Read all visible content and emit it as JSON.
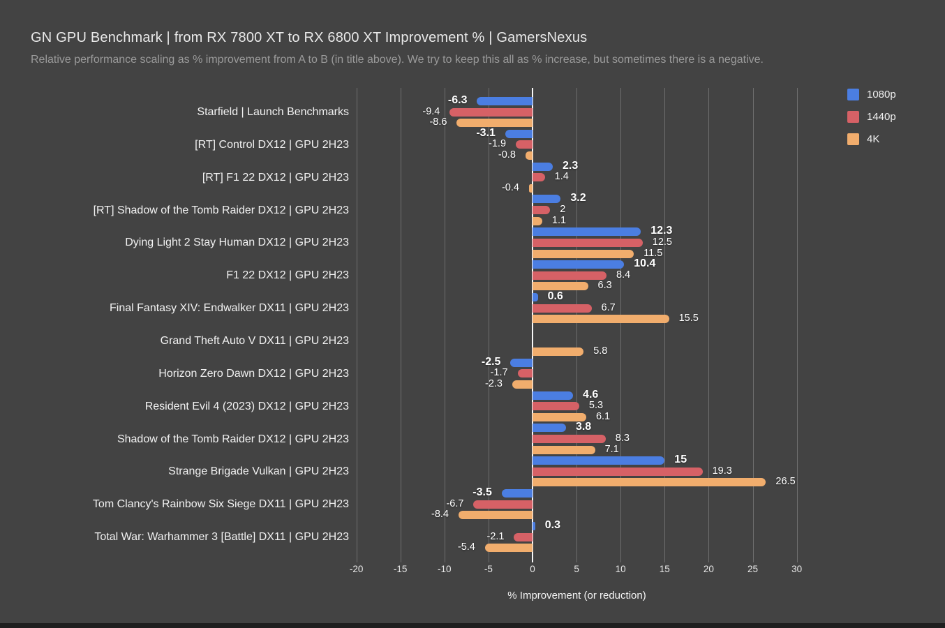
{
  "chart_data": {
    "type": "bar",
    "orientation": "horizontal",
    "title": "GN GPU Benchmark | from RX 7800 XT to RX 6800 XT Improvement % | GamersNexus",
    "subtitle": "Relative performance scaling as % improvement from A to B (in title above). We try to keep this all as % increase, but sometimes there is a negative.",
    "xlabel": "% Improvement (or reduction)",
    "xlim": [
      -20,
      30
    ],
    "xticks": [
      -20,
      -15,
      -10,
      -5,
      0,
      5,
      10,
      15,
      20,
      25,
      30
    ],
    "grid": true,
    "legend_position": "top-right",
    "background_color": "#434343",
    "gridline_color": "#6e6e6e",
    "zero_line_color": "#f7f7f7",
    "categories": [
      "Starfield | Launch Benchmarks",
      "[RT] Control DX12 | GPU 2H23",
      "[RT] F1 22 DX12 | GPU 2H23",
      "[RT] Shadow of the Tomb Raider DX12 | GPU 2H23",
      "Dying Light 2 Stay Human DX12 | GPU 2H23",
      "F1 22 DX12 | GPU 2H23",
      "Final Fantasy XIV: Endwalker DX11 | GPU 2H23",
      "Grand Theft Auto V DX11 | GPU 2H23",
      "Horizon Zero Dawn DX12 | GPU 2H23",
      "Resident Evil 4 (2023) DX12 | GPU 2H23",
      "Shadow of the Tomb Raider DX12 | GPU 2H23",
      "Strange Brigade Vulkan | GPU 2H23",
      "Tom Clancy's Rainbow Six Siege DX11 | GPU 2H23",
      "Total War: Warhammer 3 [Battle] DX11 | GPU 2H23"
    ],
    "series": [
      {
        "name": "1080p",
        "color": "#4b7ee2",
        "values": [
          -6.3,
          -3.1,
          2.3,
          3.2,
          12.3,
          10.4,
          0.6,
          null,
          -2.5,
          4.6,
          3.8,
          15,
          -3.5,
          0.3
        ],
        "labels": [
          "-6.3",
          "-3.1",
          "2.3",
          "3.2",
          "12.3",
          "10.4",
          "0.6",
          null,
          "-2.5",
          "4.6",
          "3.8",
          "15",
          "-3.5",
          "0.3"
        ]
      },
      {
        "name": "1440p",
        "color": "#d66166",
        "values": [
          -9.4,
          -1.9,
          1.4,
          2,
          12.5,
          8.4,
          6.7,
          null,
          -1.7,
          5.3,
          8.3,
          19.3,
          -6.7,
          -2.1
        ],
        "labels": [
          "-9.4",
          "-1.9",
          "1.4",
          "2",
          "12.5",
          "8.4",
          "6.7",
          null,
          "-1.7",
          "5.3",
          "8.3",
          "19.3",
          "-6.7",
          "-2.1"
        ]
      },
      {
        "name": "4K",
        "color": "#f1ad6d",
        "values": [
          -8.6,
          -0.8,
          -0.4,
          1.1,
          11.5,
          6.3,
          15.5,
          5.8,
          -2.3,
          6.1,
          7.1,
          26.5,
          -8.4,
          -5.4
        ],
        "labels": [
          "-8.6",
          "-0.8",
          "-0.4",
          "1.1",
          "11.5",
          "6.3",
          "15.5",
          "5.8",
          "-2.3",
          "6.1",
          "7.1",
          "26.5",
          "-8.4",
          "-5.4"
        ]
      }
    ]
  }
}
